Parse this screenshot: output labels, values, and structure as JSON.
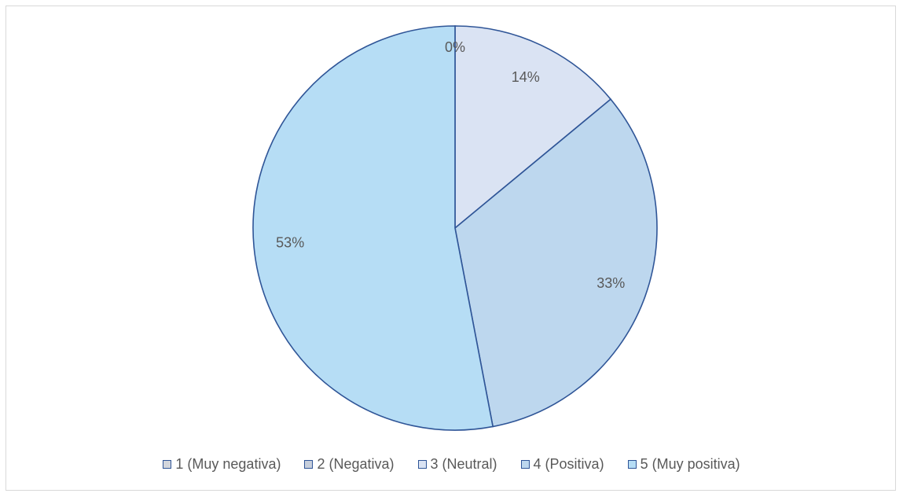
{
  "chart_data": {
    "type": "pie",
    "categories": [
      "1 (Muy negativa)",
      "2 (Negativa)",
      "3 (Neutral)",
      "4 (Positiva)",
      "5 (Muy positiva)"
    ],
    "values": [
      0,
      0,
      14,
      33,
      53
    ],
    "data_labels": [
      "0%",
      "",
      "14%",
      "33%",
      "53%"
    ],
    "colors": [
      "#d3d6dc",
      "#c7cfdc",
      "#dae3f3",
      "#bdd7ee",
      "#b6ddf5"
    ],
    "stroke_color": "#2f5597",
    "legend_position": "bottom"
  }
}
